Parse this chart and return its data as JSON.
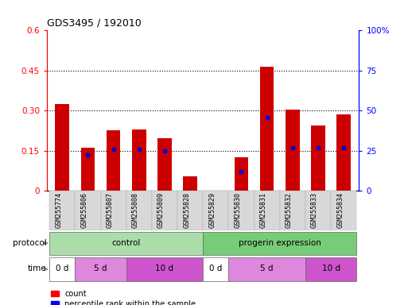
{
  "title": "GDS3495 / 192010",
  "samples": [
    "GSM255774",
    "GSM255806",
    "GSM255807",
    "GSM255808",
    "GSM255809",
    "GSM255828",
    "GSM255829",
    "GSM255830",
    "GSM255831",
    "GSM255832",
    "GSM255833",
    "GSM255834"
  ],
  "count_values": [
    0.325,
    0.16,
    0.225,
    0.228,
    0.195,
    0.055,
    0.0,
    0.125,
    0.465,
    0.305,
    0.245,
    0.285
  ],
  "percentile_values": [
    null,
    0.135,
    0.155,
    0.155,
    0.148,
    null,
    null,
    0.07,
    0.275,
    0.16,
    0.16,
    0.16
  ],
  "ylim_left": [
    0,
    0.6
  ],
  "ylim_right": [
    0,
    100
  ],
  "yticks_left": [
    0,
    0.15,
    0.3,
    0.45,
    0.6
  ],
  "ytick_labels_left": [
    "0",
    "0.15",
    "0.30",
    "0.45",
    "0.6"
  ],
  "yticks_right": [
    0,
    25,
    50,
    75,
    100
  ],
  "ytick_labels_right": [
    "0",
    "25",
    "50",
    "75",
    "100%"
  ],
  "bar_color": "#cc0000",
  "dot_color": "#0000cc",
  "background_color": "#ffffff",
  "plot_bg": "#ffffff",
  "proto_control_color": "#aaddaa",
  "proto_progerin_color": "#77cc77",
  "time_0d_color": "#ffffff",
  "time_5d_color": "#dd88dd",
  "time_10d_color": "#cc55cc",
  "grid_dotted_values": [
    0.15,
    0.3,
    0.45
  ]
}
